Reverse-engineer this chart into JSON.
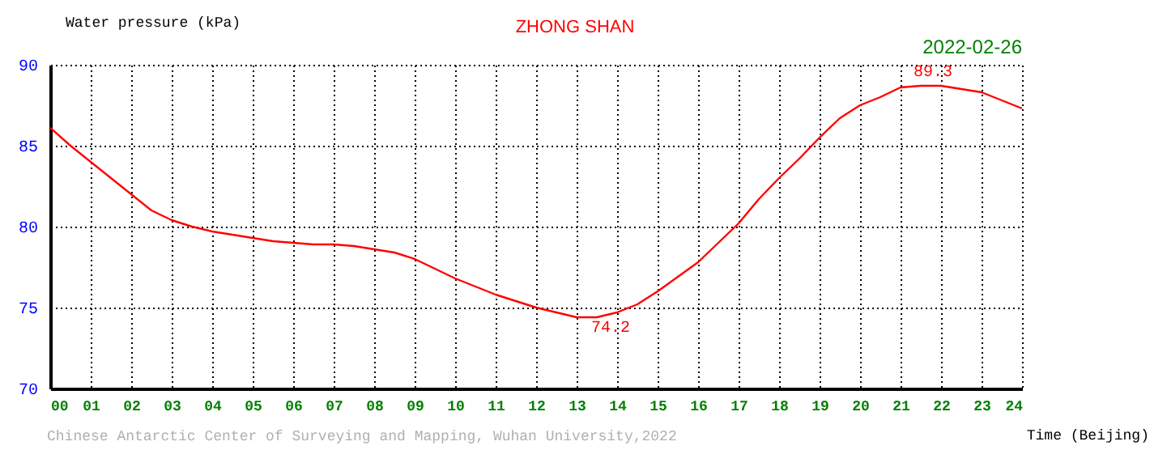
{
  "chart_data": {
    "type": "line",
    "title": "ZHONG SHAN",
    "subtitle": "2022-02-26",
    "xlabel": "Time (Beijing)",
    "ylabel": "Water pressure (kPa)",
    "x": [
      0,
      0.5,
      1,
      1.5,
      2,
      2.5,
      3,
      3.5,
      4,
      4.5,
      5,
      5.5,
      6,
      6.5,
      7,
      7.5,
      8,
      8.5,
      9,
      9.5,
      10,
      10.5,
      11,
      11.5,
      12,
      12.5,
      13,
      13.5,
      14,
      14.5,
      15,
      15.5,
      16,
      16.5,
      17,
      17.5,
      18,
      18.5,
      19,
      19.5,
      20,
      20.5,
      21,
      21.5,
      22,
      22.5,
      23,
      23.5,
      24
    ],
    "series": [
      {
        "color": "#ff0000",
        "values": [
          86.1,
          85.0,
          84.0,
          83.0,
          82.0,
          81.0,
          80.4,
          80.0,
          79.7,
          79.5,
          79.3,
          79.1,
          79.0,
          78.9,
          78.9,
          78.8,
          78.6,
          78.4,
          78.0,
          77.4,
          76.8,
          76.3,
          75.8,
          75.4,
          75.0,
          74.7,
          74.4,
          74.4,
          74.7,
          75.2,
          76.0,
          76.9,
          77.8,
          79.0,
          80.2,
          81.7,
          83.0,
          84.2,
          85.5,
          86.7,
          87.5,
          88.0,
          88.6,
          88.7,
          88.7,
          88.5,
          88.3,
          87.8,
          87.3
        ]
      }
    ],
    "xlim": [
      0,
      24
    ],
    "ylim": [
      70,
      90
    ],
    "xticks": [
      {
        "value": 0,
        "label": "00"
      },
      {
        "value": 1,
        "label": "01"
      },
      {
        "value": 2,
        "label": "02"
      },
      {
        "value": 3,
        "label": "03"
      },
      {
        "value": 4,
        "label": "04"
      },
      {
        "value": 5,
        "label": "05"
      },
      {
        "value": 6,
        "label": "06"
      },
      {
        "value": 7,
        "label": "07"
      },
      {
        "value": 8,
        "label": "08"
      },
      {
        "value": 9,
        "label": "09"
      },
      10,
      11,
      12,
      13,
      14,
      15,
      16,
      17,
      18,
      19,
      20,
      21,
      22,
      23,
      24
    ],
    "yticks": [
      70,
      75,
      80,
      85,
      90
    ],
    "grid": true,
    "marker": "none",
    "annotations": [
      "89.3",
      "74.2",
      "Chinese Antarctic Center of Surveying and Mapping, Wuhan University,2022"
    ]
  }
}
